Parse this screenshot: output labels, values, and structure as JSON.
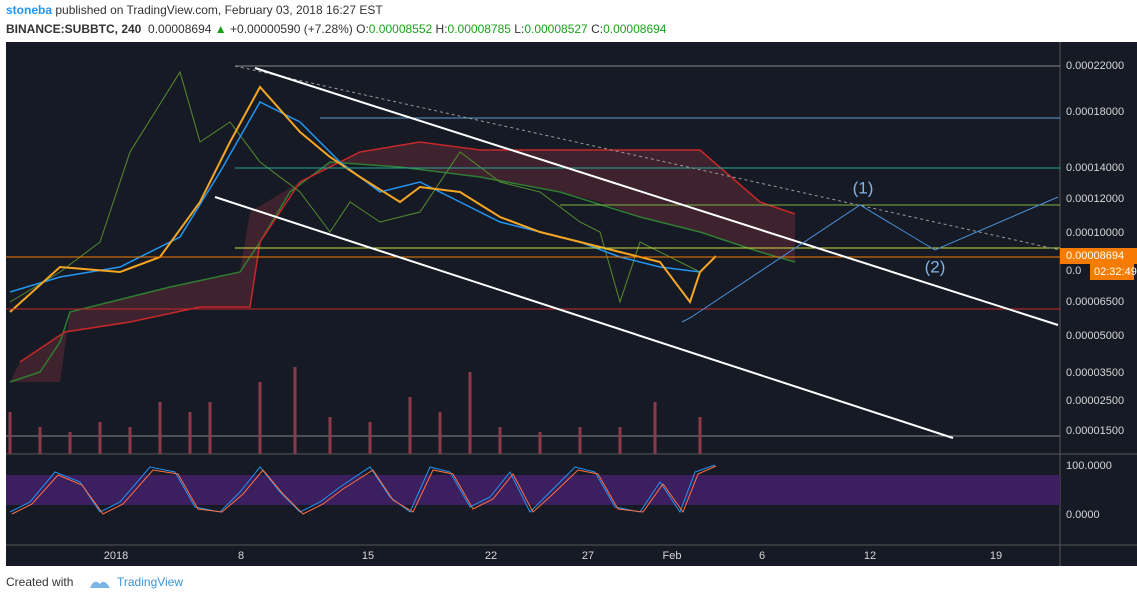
{
  "header": {
    "author": "stoneba",
    "published": "published on TradingView.com, February 03, 2018 16:27 EST",
    "symbol": "BINANCE:SUBBTC, 240",
    "last": "0.00008694",
    "arrow": "▲",
    "change": "+0.00000590 (+7.28%)",
    "quote": [
      {
        "label": "O:",
        "value": "0.00008552"
      },
      {
        "label": "H:",
        "value": "0.00008785"
      },
      {
        "label": "L:",
        "value": "0.00008527"
      },
      {
        "label": "C:",
        "value": "0.00008694"
      }
    ]
  },
  "price_axis": [
    "0.00022000",
    "0.00018000",
    "0.00014000",
    "0.00012000",
    "0.00010000",
    "0.0",
    "0.00006500",
    "0.00005000",
    "0.00003500",
    "0.00002500",
    "0.00001500"
  ],
  "price_tag": "0.00008694",
  "countdown": "02:32:49",
  "oscillator_axis": [
    "100.0000",
    "0.0000"
  ],
  "time_axis": [
    "2018",
    "8",
    "15",
    "22",
    "27",
    "Feb",
    "6",
    "12",
    "19"
  ],
  "annotations": [
    "(1)",
    "(2)"
  ],
  "footer": {
    "created": "Created with",
    "brand": "TradingView"
  }
}
